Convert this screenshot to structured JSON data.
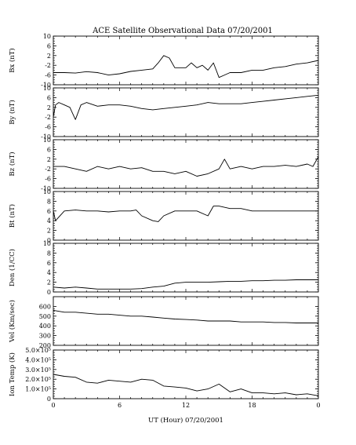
{
  "chart_data": {
    "type": "line",
    "title": "ACE Satellite Observational Data   07/20/2001",
    "xlabel": "UT (Hour)  07/20/2001",
    "x_ticks": [
      "0",
      "6",
      "12",
      "18",
      "0"
    ],
    "xlim": [
      0,
      24
    ],
    "panels": [
      {
        "ylabel": "Bx (nT)",
        "ylim": [
          -10,
          10
        ],
        "yticks": [
          "10",
          "6",
          "2",
          "-2",
          "-6",
          "-10"
        ],
        "x": [
          0,
          1,
          2,
          3,
          4,
          5,
          6,
          7,
          8,
          9,
          9.5,
          10,
          10.5,
          11,
          12,
          12.5,
          13,
          13.5,
          14,
          14.5,
          15,
          15.5,
          16,
          17,
          18,
          19,
          20,
          21,
          22,
          23,
          24
        ],
        "values": [
          -5,
          -5,
          -5.2,
          -4.6,
          -5,
          -6,
          -5.5,
          -4.5,
          -4,
          -3.5,
          -1,
          2,
          1,
          -3,
          -3,
          -1,
          -3,
          -2,
          -4,
          -1,
          -7,
          -6,
          -5,
          -5,
          -4,
          -4,
          -3,
          -2.5,
          -1.5,
          -1,
          0
        ]
      },
      {
        "ylabel": "By (nT)",
        "ylim": [
          -10,
          10
        ],
        "yticks": [
          "10",
          "6",
          "2",
          "-2",
          "-6",
          "-10"
        ],
        "x": [
          0,
          0.2,
          0.5,
          1,
          1.5,
          1.8,
          2,
          2.5,
          3,
          4,
          5,
          6,
          7,
          8,
          9,
          10,
          11,
          12,
          13,
          14,
          15,
          16,
          17,
          18,
          19,
          20,
          21,
          22,
          23,
          24
        ],
        "values": [
          -2,
          3,
          4,
          3,
          2,
          -1,
          -3,
          3,
          4,
          2.5,
          3,
          3,
          2.5,
          1.5,
          1,
          1.5,
          2,
          2.5,
          3,
          4,
          3.5,
          3.5,
          3.5,
          4,
          4.5,
          5,
          5.5,
          6,
          6.5,
          7
        ]
      },
      {
        "ylabel": "Bz (nT)",
        "ylim": [
          -10,
          10
        ],
        "yticks": [
          "10",
          "6",
          "2",
          "-2",
          "-6",
          "-10"
        ],
        "x": [
          0,
          1,
          2,
          3,
          4,
          5,
          6,
          7,
          8,
          9,
          10,
          11,
          12,
          13,
          14,
          15,
          15.5,
          16,
          17,
          18,
          19,
          20,
          21,
          22,
          23,
          23.5,
          24
        ],
        "values": [
          -1,
          -1,
          -2,
          -3,
          -1,
          -2,
          -1,
          -2,
          -1.5,
          -3,
          -3,
          -4,
          -3,
          -5,
          -4,
          -2,
          2,
          -2,
          -1,
          -2,
          -1,
          -1,
          -0.5,
          -1,
          0,
          -1,
          3
        ]
      },
      {
        "ylabel": "Bt (nT)",
        "ylim": [
          0,
          10
        ],
        "yticks": [
          "10",
          "8",
          "6",
          "4",
          "2",
          "0"
        ],
        "x": [
          0,
          0.2,
          1,
          2,
          3,
          4,
          5,
          6,
          7,
          7.5,
          8,
          9,
          9.5,
          10,
          11,
          12,
          13,
          14,
          14.5,
          15,
          16,
          17,
          18,
          19,
          20,
          21,
          22,
          23,
          24
        ],
        "values": [
          6,
          4,
          6,
          6.2,
          6,
          6,
          5.8,
          6,
          6,
          6.2,
          5,
          4,
          3.8,
          5,
          6,
          6,
          6,
          5,
          7,
          7,
          6.5,
          6.5,
          6,
          6,
          6,
          6,
          6,
          6,
          6
        ]
      },
      {
        "ylabel": "Den (1/CC)",
        "ylim": [
          0,
          10
        ],
        "yticks": [
          "10",
          "8",
          "6",
          "4",
          "2",
          "0"
        ],
        "x": [
          0,
          1,
          2,
          3,
          4,
          5,
          6,
          7,
          8,
          9,
          10,
          11,
          12,
          13,
          14,
          15,
          16,
          17,
          18,
          19,
          20,
          21,
          22,
          23,
          24
        ],
        "values": [
          1,
          0.8,
          1,
          0.8,
          0.6,
          0.6,
          0.6,
          0.6,
          0.7,
          1,
          1.2,
          1.8,
          2,
          2,
          2,
          2.1,
          2.2,
          2.2,
          2.3,
          2.3,
          2.4,
          2.4,
          2.5,
          2.5,
          2.5
        ]
      },
      {
        "ylabel": "Vel (Km/sec)",
        "ylim": [
          200,
          700
        ],
        "yticks": [
          "600",
          "500",
          "400",
          "300",
          "200"
        ],
        "x": [
          0,
          1,
          2,
          3,
          4,
          5,
          6,
          7,
          8,
          9,
          10,
          11,
          12,
          13,
          14,
          15,
          16,
          17,
          18,
          19,
          20,
          21,
          22,
          23,
          24
        ],
        "values": [
          560,
          540,
          540,
          530,
          520,
          520,
          510,
          500,
          500,
          490,
          480,
          470,
          465,
          460,
          450,
          450,
          450,
          440,
          440,
          440,
          435,
          435,
          430,
          430,
          430
        ]
      },
      {
        "ylabel": "Ion Temp (K)",
        "ylim": [
          0,
          500000
        ],
        "yticks": [
          "5.0×10⁵",
          "4.0×10⁵",
          "3.0×10⁵",
          "2.0×10⁵",
          "1.0×10⁵",
          "0"
        ],
        "x": [
          0,
          1,
          2,
          3,
          4,
          5,
          6,
          7,
          8,
          9,
          10,
          11,
          12,
          13,
          14,
          15,
          16,
          17,
          18,
          19,
          20,
          21,
          22,
          23,
          24
        ],
        "values": [
          250000,
          230000,
          220000,
          170000,
          160000,
          190000,
          180000,
          170000,
          200000,
          190000,
          130000,
          120000,
          110000,
          80000,
          100000,
          150000,
          70000,
          100000,
          60000,
          60000,
          50000,
          60000,
          40000,
          50000,
          30000
        ]
      }
    ]
  }
}
